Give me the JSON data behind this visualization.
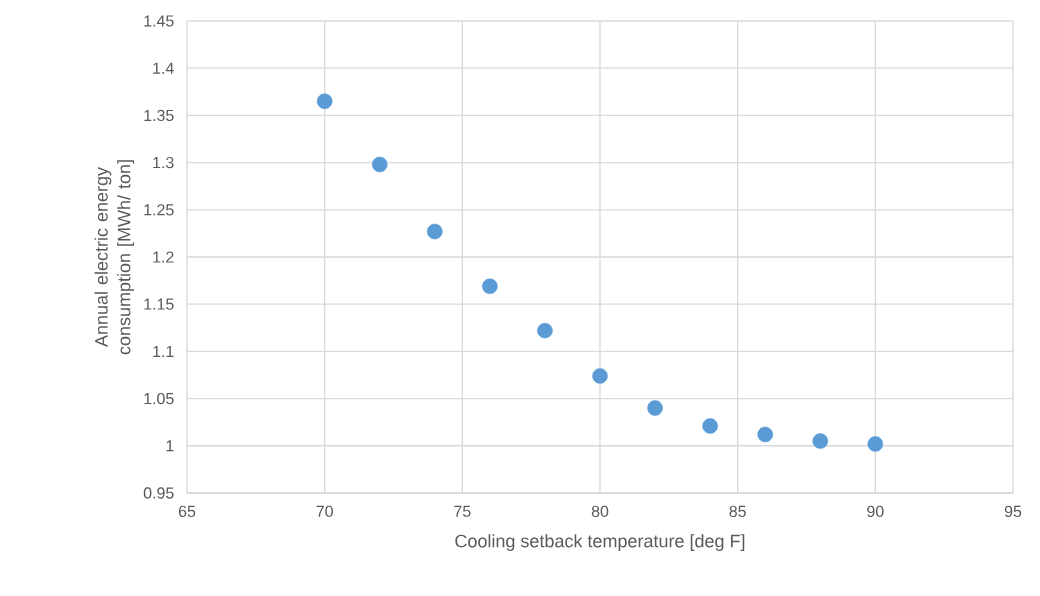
{
  "chart_data": {
    "type": "scatter",
    "xlabel": "Cooling setback temperature [deg F]",
    "ylabel": "Annual electric energy consumption [MWh/ ton]",
    "x": [
      70,
      72,
      74,
      76,
      78,
      80,
      82,
      84,
      86,
      88,
      90
    ],
    "series": [
      {
        "color": "#5b9bd5",
        "values": [
          1.365,
          1.298,
          1.227,
          1.169,
          1.122,
          1.074,
          1.04,
          1.021,
          1.012,
          1.005,
          1.002
        ]
      }
    ],
    "xlim": [
      65,
      95
    ],
    "ylim": [
      0.95,
      1.45
    ],
    "xticks": [
      65,
      70,
      75,
      80,
      85,
      90,
      95
    ],
    "yticks": [
      0.95,
      1,
      1.05,
      1.1,
      1.15,
      1.2,
      1.25,
      1.3,
      1.35,
      1.4,
      1.45
    ],
    "grid": true,
    "marker": "circle"
  }
}
